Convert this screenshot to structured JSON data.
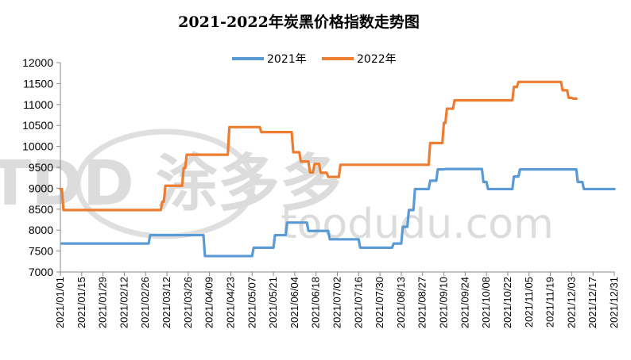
{
  "chart_data": {
    "type": "line",
    "title": "2021-2022年炭黑价格指数走势图",
    "xlabel": "",
    "ylabel": "",
    "ylim": [
      7000,
      12000
    ],
    "yticks": [
      7000,
      7500,
      8000,
      8500,
      9000,
      9500,
      10000,
      10500,
      11000,
      11500,
      12000
    ],
    "xrange": [
      "2021/01/01",
      "2021/12/31"
    ],
    "xticks": [
      "2021/01/01",
      "2021/01/15",
      "2021/01/29",
      "2021/02/12",
      "2021/02/26",
      "2021/03/12",
      "2021/03/26",
      "2021/04/09",
      "2021/04/23",
      "2021/05/07",
      "2021/05/21",
      "2021/06/04",
      "2021/06/18",
      "2021/07/02",
      "2021/07/16",
      "2021/07/30",
      "2021/08/13",
      "2021/08/27",
      "2021/09/10",
      "2021/09/24",
      "2021/10/08",
      "2021/10/22",
      "2021/11/05",
      "2021/11/19",
      "2021/12/03",
      "2021/12/17",
      "2021/12/31"
    ],
    "legend_position": "top-center",
    "grid": false,
    "watermark": {
      "text_top": "TDD 涂多多",
      "text_bottom": "toodudu.com"
    },
    "series": [
      {
        "name": "2021年",
        "color": "#5b9bd5",
        "x": [
          "2021/01/02",
          "2021/02/28",
          "2021/03/01",
          "2021/04/05",
          "2021/04/06",
          "2021/05/07",
          "2021/05/08",
          "2021/05/21",
          "2021/05/22",
          "2021/05/29",
          "2021/05/30",
          "2021/06/12",
          "2021/06/13",
          "2021/06/26",
          "2021/06/27",
          "2021/07/16",
          "2021/07/17",
          "2021/08/07",
          "2021/08/08",
          "2021/08/13",
          "2021/08/14",
          "2021/08/17",
          "2021/08/18",
          "2021/08/21",
          "2021/08/22",
          "2021/08/31",
          "2021/09/01",
          "2021/09/05",
          "2021/09/06",
          "2021/09/10",
          "2021/09/11",
          "2021/10/05",
          "2021/10/06",
          "2021/10/08",
          "2021/10/09",
          "2021/10/25",
          "2021/10/26",
          "2021/10/29",
          "2021/10/30",
          "2021/12/06",
          "2021/12/07",
          "2021/12/10",
          "2021/12/11",
          "2021/12/31"
        ],
        "values": [
          7680,
          7680,
          7880,
          7880,
          7380,
          7380,
          7580,
          7580,
          7880,
          7880,
          8180,
          8180,
          7980,
          7980,
          7780,
          7780,
          7580,
          7580,
          7680,
          7680,
          8080,
          8080,
          8480,
          8480,
          8980,
          8980,
          9180,
          9180,
          9450,
          9450,
          9460,
          9460,
          9150,
          9150,
          8980,
          8980,
          9280,
          9280,
          9450,
          9450,
          9150,
          9150,
          8980,
          8980
        ]
      },
      {
        "name": "2022年",
        "color": "#ed7d31",
        "x": [
          "2021/01/01",
          "2021/01/02",
          "2021/01/03",
          "2021/03/08",
          "2021/03/09",
          "2021/03/10",
          "2021/03/11",
          "2021/03/22",
          "2021/03/23",
          "2021/03/24",
          "2021/03/25",
          "2021/04/21",
          "2021/04/22",
          "2021/05/12",
          "2021/05/13",
          "2021/06/02",
          "2021/06/03",
          "2021/06/07",
          "2021/06/08",
          "2021/06/13",
          "2021/06/14",
          "2021/06/16",
          "2021/06/17",
          "2021/06/20",
          "2021/06/21",
          "2021/06/25",
          "2021/06/26",
          "2021/07/03",
          "2021/07/04",
          "2021/08/31",
          "2021/09/01",
          "2021/09/09",
          "2021/09/10",
          "2021/09/11",
          "2021/09/12",
          "2021/09/16",
          "2021/09/17",
          "2021/10/25",
          "2021/10/26",
          "2021/10/28",
          "2021/10/29",
          "2021/11/26",
          "2021/11/27",
          "2021/11/30",
          "2021/12/01",
          "2021/12/03",
          "2021/12/04",
          "2021/12/06"
        ],
        "values": [
          8980,
          8980,
          8480,
          8480,
          8680,
          8680,
          9060,
          9060,
          9480,
          9480,
          9800,
          9800,
          10460,
          10460,
          10340,
          10340,
          9860,
          9860,
          9640,
          9640,
          9380,
          9380,
          9580,
          9580,
          9370,
          9370,
          9270,
          9270,
          9560,
          9560,
          10080,
          10080,
          10560,
          10560,
          10900,
          10900,
          11100,
          11100,
          11420,
          11420,
          11540,
          11540,
          11340,
          11340,
          11160,
          11160,
          11140,
          11140
        ]
      }
    ]
  }
}
